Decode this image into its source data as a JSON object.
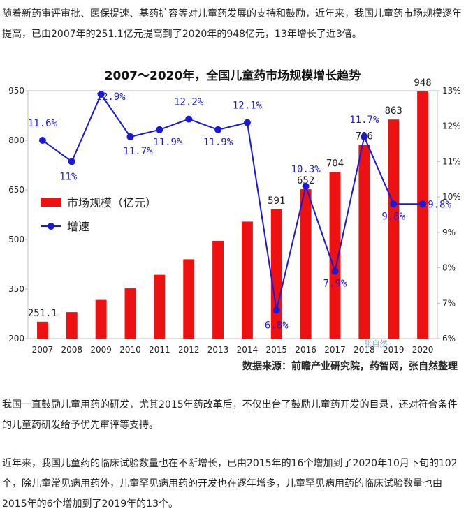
{
  "paragraphs": {
    "intro": "随着新药审评审批、医保提速、基药扩容等对儿童药发展的支持和鼓励，近年来，我国儿童药市场规模逐年提高，已由2007年的251.1亿元提高到了2020年的948亿元，13年增长了近3倍。",
    "policy": "我国一直鼓励儿童用药的研发，尤其2015年药改革后，不仅出台了鼓励儿童药开发的目录，还对符合条件的儿童药研发给予优先审评等支持。",
    "trials": "近年来，我国儿童药的临床试验数量也在不断增长，已由2015年的16个增加到了2020年10月下旬的102个，除儿童常见病用药外，儿童罕见病用药的开发也在逐年增多，儿童罕见病用药的临床试验数量也由2015年的6个增加到了2019年的13个。"
  },
  "chart_data": {
    "type": "bar",
    "title": "2007～2020年，全国儿童药市场规模增长趋势",
    "categories": [
      "2007",
      "2008",
      "2009",
      "2010",
      "2011",
      "2012",
      "2013",
      "2014",
      "2015",
      "2016",
      "2017",
      "2018",
      "2019",
      "2020"
    ],
    "series": [
      {
        "name": "市场规模（亿元）",
        "type": "bar",
        "axis": "left",
        "color": "#ee1111",
        "values": [
          251.1,
          280,
          317,
          352,
          393,
          440,
          496,
          554,
          591,
          652,
          704,
          786,
          863,
          948
        ],
        "labels": [
          "251.1",
          "",
          "",
          "",
          "",
          "",
          "",
          "",
          "591",
          "652",
          "704",
          "786",
          "863",
          "948"
        ]
      },
      {
        "name": "增速",
        "type": "line",
        "axis": "right",
        "color": "#1a1ad6",
        "values": [
          11.6,
          11.0,
          12.9,
          11.7,
          11.9,
          12.2,
          11.9,
          12.1,
          6.8,
          10.3,
          7.9,
          11.7,
          9.8,
          9.8
        ],
        "labels": [
          "11.6%",
          "11%",
          "12.9%",
          "11.7%",
          "11.9%",
          "12.2%",
          "11.9%",
          "12.1%",
          "6.8%",
          "10.3%",
          "7.9%",
          "11.7%",
          "9.8%",
          "9.8%"
        ]
      }
    ],
    "y_left": {
      "min": 200,
      "max": 950,
      "ticks": [
        "200",
        "350",
        "500",
        "650",
        "800",
        "950"
      ]
    },
    "y_right": {
      "min": 6,
      "max": 13,
      "ticks": [
        "6%",
        "7%",
        "8%",
        "9%",
        "10%",
        "11%",
        "12%",
        "13%"
      ]
    },
    "legend": {
      "placement": "left-middle"
    },
    "grid": false,
    "source": "数据来源：前瞻产业研究院，药智网，张自然整理",
    "watermark": "张自然"
  }
}
